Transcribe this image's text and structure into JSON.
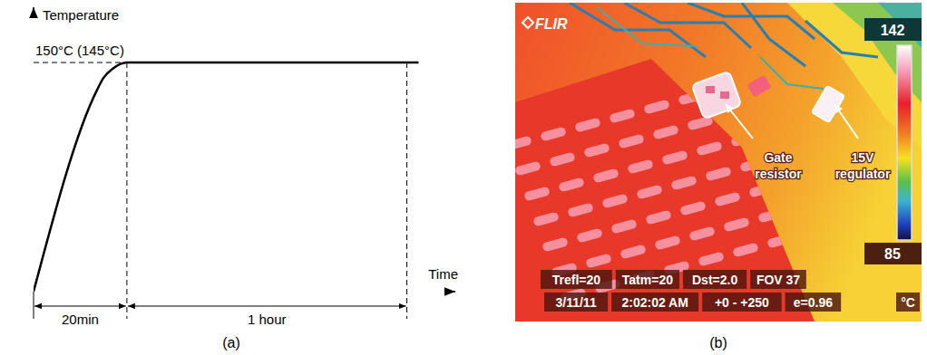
{
  "chart_data": {
    "type": "line",
    "x_label": "Time",
    "y_label": "Temperature",
    "panel_label": "(a)",
    "x": [
      0,
      13.6,
      15,
      17,
      20,
      82.5
    ],
    "values": [
      0,
      132,
      140,
      146,
      150,
      150
    ],
    "color": "#000000",
    "xlim": [
      0,
      90
    ],
    "ylim": [
      0,
      185
    ],
    "tick_labels": false,
    "grid": false,
    "annotations": [
      {
        "x": [
          0,
          20
        ],
        "y": 150,
        "label": "150°C (145°C)"
      }
    ],
    "spans": [
      {
        "from": 0,
        "to": 20,
        "label": "20min"
      },
      {
        "from": 20,
        "to": 80,
        "label": "1 hour"
      }
    ]
  },
  "thermal_image": {
    "panel_label": "(b)",
    "logo": "FLIR",
    "colorbar": {
      "max": 142,
      "min": 85,
      "unit": "°C"
    },
    "callouts": [
      "Gate resistor",
      "15V regulator"
    ],
    "status": [
      [
        "Trefl=20",
        "Tatm=20",
        "Dst=2.0",
        "FOV 37"
      ],
      [
        "3/11/11",
        "2:02:02 AM",
        "+0 - +250",
        "e=0.96"
      ]
    ]
  }
}
